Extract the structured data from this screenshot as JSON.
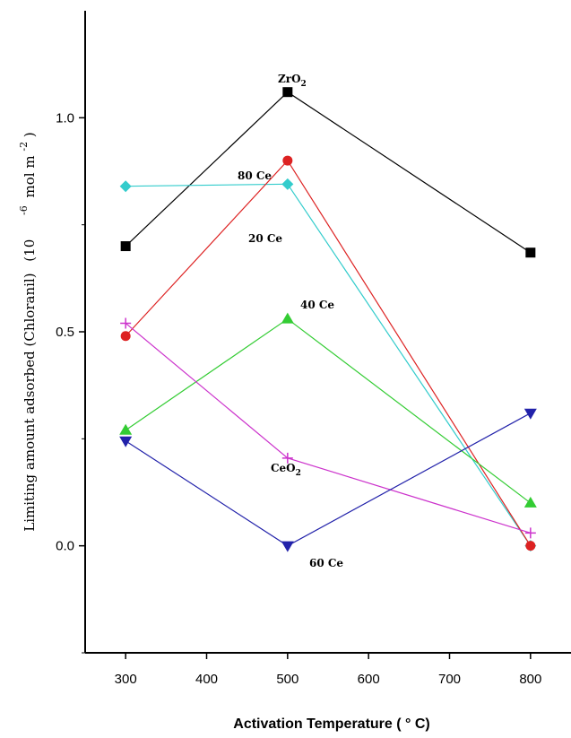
{
  "chart_data": {
    "type": "line",
    "xlabel": "Activation Temperature ( ° C)",
    "ylabel": "Limiting amount adsorbed (Chloranil)  (10  -6 mol m -2)",
    "ylabel_parts": {
      "main": "Limiting amount adsorbed (Chloranil)",
      "factor": "(10",
      "exp": "-6",
      "unit": "mol m",
      "unit_exp": "-2",
      "close": ")"
    },
    "xlim": [
      250,
      850
    ],
    "ylim": [
      -0.25,
      1.25
    ],
    "xticks": [
      300,
      400,
      500,
      600,
      700,
      800
    ],
    "yticks": [
      0.0,
      0.5,
      1.0
    ],
    "ytick_labels": [
      "0.0",
      "0.5",
      "1.0"
    ],
    "grid": false,
    "series": [
      {
        "name": "ZrO2",
        "label_main": "ZrO",
        "label_sub": "2",
        "color": "#000000",
        "marker": "square",
        "x": [
          300,
          500,
          800
        ],
        "y": [
          0.7,
          1.06,
          0.685
        ]
      },
      {
        "name": "80 Ce",
        "label_main": "80 Ce",
        "label_sub": "",
        "color": "#33cccc",
        "marker": "diamond",
        "x": [
          300,
          500,
          800
        ],
        "y": [
          0.84,
          0.845,
          0.0
        ]
      },
      {
        "name": "20 Ce",
        "label_main": "20 Ce",
        "label_sub": "",
        "color": "#dd2222",
        "marker": "circle",
        "x": [
          300,
          500,
          800
        ],
        "y": [
          0.49,
          0.9,
          0.0
        ]
      },
      {
        "name": "40 Ce",
        "label_main": "40 Ce",
        "label_sub": "",
        "color": "#33cc33",
        "marker": "triangle-up",
        "x": [
          300,
          500,
          800
        ],
        "y": [
          0.27,
          0.53,
          0.1
        ]
      },
      {
        "name": "CeO2",
        "label_main": "CeO",
        "label_sub": "2",
        "color": "#cc33cc",
        "marker": "plus",
        "x": [
          300,
          500,
          800
        ],
        "y": [
          0.52,
          0.205,
          0.03
        ]
      },
      {
        "name": "60 Ce",
        "label_main": "60 Ce",
        "label_sub": "",
        "color": "#2222aa",
        "marker": "triangle-down",
        "x": [
          300,
          500,
          800
        ],
        "y": [
          0.245,
          0.0,
          0.31
        ]
      }
    ]
  }
}
